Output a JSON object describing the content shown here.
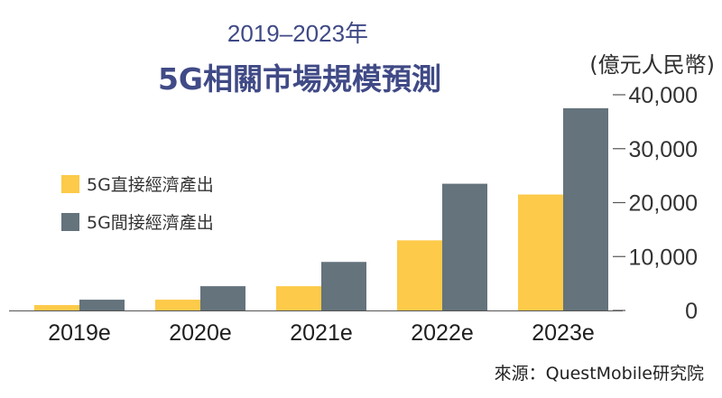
{
  "header": {
    "title_line1": "2019–2023年",
    "title_line2": "5G相關市場規模預測"
  },
  "source": "來源：QuestMobile研究院",
  "colors": {
    "direct": "#fdca49",
    "indirect": "#64737c",
    "title": "#404a86",
    "axis": "#555555"
  },
  "chart_data": {
    "type": "bar",
    "categories": [
      "2019e",
      "2020e",
      "2021e",
      "2022e",
      "2023e"
    ],
    "series": [
      {
        "name": "5G直接經濟產出",
        "values": [
          1000,
          2000,
          4500,
          13000,
          21500
        ]
      },
      {
        "name": "5G間接經濟產出",
        "values": [
          2000,
          4500,
          9000,
          23500,
          37500
        ]
      }
    ],
    "ylabel": "(億元人民幣)",
    "yticks": [
      "0",
      "10,000",
      "20,000",
      "30,000",
      "40,000"
    ],
    "ytick_values": [
      0,
      10000,
      20000,
      30000,
      40000
    ],
    "ylim": [
      0,
      40000
    ],
    "y_axis_side": "right",
    "legend_position": "left",
    "grid": false
  }
}
